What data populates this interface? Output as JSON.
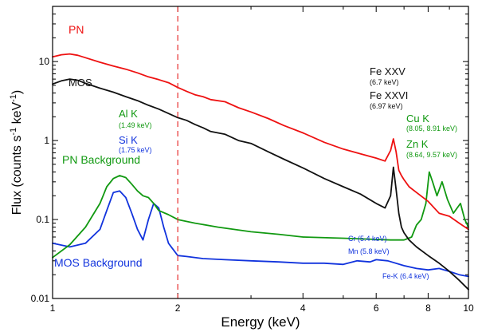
{
  "chart_data": {
    "type": "line",
    "xscale": "log",
    "yscale": "log",
    "xlabel": "Energy (keV)",
    "ylabel": {
      "main": "Flux (counts s",
      "sup1": "-1",
      "mid": " keV",
      "sup2": "-1",
      "end": ")"
    },
    "xlim": [
      1,
      10
    ],
    "ylim": [
      0.01,
      50
    ],
    "xticks": [
      {
        "v": 1,
        "label": "1"
      },
      {
        "v": 2,
        "label": "2"
      },
      {
        "v": 4,
        "label": "4"
      },
      {
        "v": 6,
        "label": "6"
      },
      {
        "v": 8,
        "label": "8"
      },
      {
        "v": 10,
        "label": "10"
      }
    ],
    "yticks": [
      {
        "v": 0.01,
        "label": "0.01"
      },
      {
        "v": 0.1,
        "label": "0.1"
      },
      {
        "v": 1,
        "label": "1"
      },
      {
        "v": 10,
        "label": "10"
      }
    ],
    "reference_line": {
      "x": 2,
      "color": "#e83030",
      "style": "dashed"
    },
    "series": [
      {
        "name": "PN",
        "label": "PN",
        "color": "#ee1111",
        "x": [
          1.0,
          1.05,
          1.1,
          1.15,
          1.2,
          1.3,
          1.4,
          1.5,
          1.6,
          1.7,
          1.8,
          1.9,
          2.0,
          2.1,
          2.2,
          2.3,
          2.4,
          2.6,
          2.8,
          3.0,
          3.3,
          3.6,
          4.0,
          4.5,
          5.0,
          5.5,
          6.0,
          6.3,
          6.5,
          6.6,
          6.7,
          6.8,
          6.9,
          7.0,
          7.2,
          7.5,
          8.0,
          8.5,
          9.0,
          9.5,
          10.0
        ],
        "values": [
          11.5,
          12.2,
          12.5,
          12.0,
          11.2,
          9.8,
          8.8,
          8.0,
          7.2,
          6.4,
          5.9,
          5.4,
          4.7,
          4.2,
          3.8,
          3.6,
          3.3,
          3.1,
          2.6,
          2.3,
          1.9,
          1.55,
          1.25,
          0.95,
          0.78,
          0.68,
          0.6,
          0.55,
          0.75,
          1.05,
          0.72,
          0.42,
          0.36,
          0.32,
          0.26,
          0.22,
          0.17,
          0.12,
          0.11,
          0.09,
          0.075
        ]
      },
      {
        "name": "MOS",
        "label": "MOS",
        "color": "#111111",
        "x": [
          1.0,
          1.05,
          1.1,
          1.15,
          1.2,
          1.3,
          1.4,
          1.5,
          1.6,
          1.7,
          1.8,
          1.9,
          2.0,
          2.1,
          2.2,
          2.3,
          2.4,
          2.6,
          2.8,
          3.0,
          3.3,
          3.6,
          4.0,
          4.5,
          5.0,
          5.5,
          6.0,
          6.3,
          6.5,
          6.6,
          6.7,
          6.8,
          6.9,
          7.0,
          7.2,
          7.5,
          8.0,
          8.5,
          9.0,
          9.5,
          10.0
        ],
        "values": [
          5.2,
          5.7,
          6.0,
          5.8,
          5.3,
          4.6,
          4.1,
          3.6,
          3.2,
          2.8,
          2.5,
          2.2,
          1.95,
          1.8,
          1.6,
          1.45,
          1.3,
          1.2,
          1.0,
          0.92,
          0.72,
          0.58,
          0.45,
          0.33,
          0.26,
          0.21,
          0.16,
          0.14,
          0.2,
          0.46,
          0.24,
          0.12,
          0.08,
          0.068,
          0.055,
          0.045,
          0.035,
          0.028,
          0.022,
          0.017,
          0.013
        ]
      },
      {
        "name": "PN Background",
        "label": "PN Background",
        "color": "#119911",
        "x": [
          1.0,
          1.1,
          1.2,
          1.3,
          1.35,
          1.4,
          1.45,
          1.5,
          1.55,
          1.6,
          1.65,
          1.7,
          1.75,
          1.8,
          1.9,
          2.0,
          2.2,
          2.5,
          3.0,
          3.5,
          4.0,
          5.0,
          6.0,
          6.5,
          7.0,
          7.3,
          7.5,
          7.7,
          7.9,
          8.05,
          8.2,
          8.4,
          8.64,
          8.9,
          9.2,
          9.57,
          9.8,
          10.0
        ],
        "values": [
          0.033,
          0.048,
          0.08,
          0.16,
          0.26,
          0.33,
          0.36,
          0.34,
          0.28,
          0.23,
          0.2,
          0.19,
          0.16,
          0.13,
          0.115,
          0.1,
          0.09,
          0.08,
          0.07,
          0.065,
          0.06,
          0.058,
          0.056,
          0.055,
          0.055,
          0.06,
          0.085,
          0.1,
          0.16,
          0.4,
          0.3,
          0.2,
          0.3,
          0.18,
          0.12,
          0.16,
          0.1,
          0.08
        ]
      },
      {
        "name": "MOS Background",
        "label": "MOS Background",
        "color": "#1133dd",
        "x": [
          1.0,
          1.1,
          1.2,
          1.3,
          1.35,
          1.4,
          1.45,
          1.5,
          1.55,
          1.6,
          1.65,
          1.7,
          1.75,
          1.8,
          1.85,
          1.9,
          2.0,
          2.1,
          2.3,
          2.6,
          3.0,
          3.5,
          4.0,
          4.5,
          5.0,
          5.4,
          5.8,
          6.0,
          6.4,
          7.0,
          7.5,
          8.0,
          8.5,
          9.0,
          9.5,
          10.0
        ],
        "values": [
          0.05,
          0.045,
          0.05,
          0.075,
          0.13,
          0.22,
          0.23,
          0.19,
          0.12,
          0.075,
          0.055,
          0.1,
          0.16,
          0.14,
          0.08,
          0.05,
          0.035,
          0.034,
          0.032,
          0.031,
          0.03,
          0.029,
          0.028,
          0.028,
          0.027,
          0.03,
          0.029,
          0.031,
          0.03,
          0.026,
          0.024,
          0.023,
          0.024,
          0.022,
          0.02,
          0.019
        ]
      }
    ],
    "annotations": [
      {
        "id": "fexxv",
        "text": "Fe XXV",
        "sub": "(6.7 keV)",
        "color": "#111111"
      },
      {
        "id": "fexxvi",
        "text": "Fe XXVI",
        "sub": "(6.97 keV)",
        "color": "#111111"
      },
      {
        "id": "alk",
        "text": "Al K",
        "sub": "(1.49 keV)",
        "color": "#119911"
      },
      {
        "id": "sik",
        "text": "Si K",
        "sub": "(1.75 keV)",
        "color": "#1133dd"
      },
      {
        "id": "cuk",
        "text": "Cu K",
        "sub": "(8.05, 8.91 keV)",
        "color": "#119911"
      },
      {
        "id": "znk",
        "text": "Zn K",
        "sub": "(8.64, 9.57 keV)",
        "color": "#119911"
      },
      {
        "id": "cr",
        "text": "Cr (5.4 keV)",
        "color": "#1133dd"
      },
      {
        "id": "mn",
        "text": "Mn (5.8 keV)",
        "color": "#1133dd"
      },
      {
        "id": "fek",
        "text": "Fe-K (6.4 keV)",
        "color": "#1133dd"
      }
    ]
  }
}
